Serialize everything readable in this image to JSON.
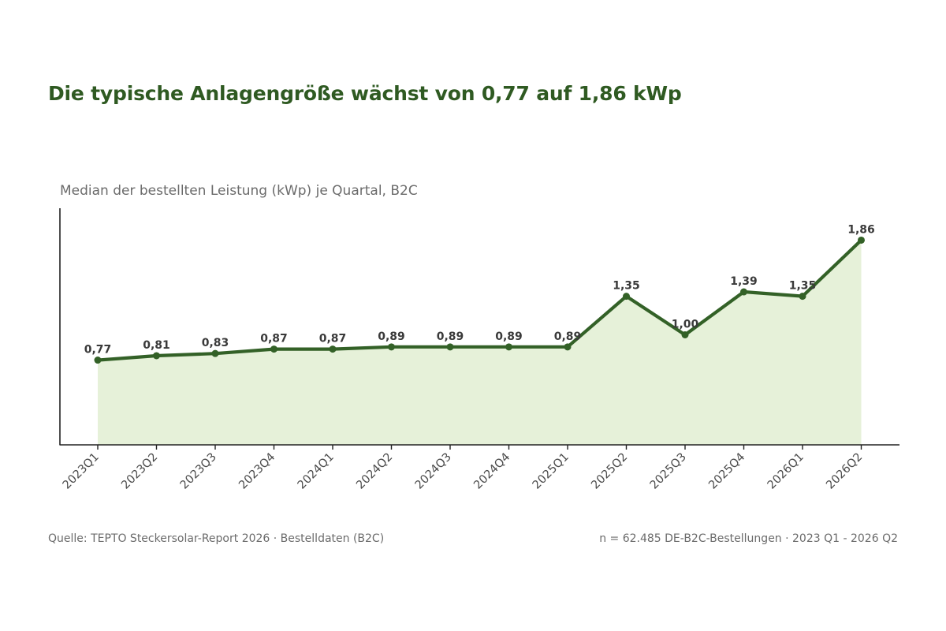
{
  "title": "Die typische Anlagengröße wächst von 0,77 auf 1,86 kWp",
  "subtitle": "Median der bestellten Leistung (kWp) je Quartal, B2C",
  "footer": {
    "source": "Quelle: TEPTO Steckersolar-Report 2026 · Bestelldaten (B2C)",
    "sample": "n = 62.485 DE-B2C-Bestellungen · 2023 Q1 - 2026 Q2"
  },
  "colors": {
    "title": "#2f5a22",
    "line": "#336127",
    "area": "#e6f1d9",
    "axis": "#222222",
    "text": "#6b6b6b"
  },
  "chart_data": {
    "type": "area",
    "title": "Die typische Anlagengröße wächst von 0,77 auf 1,86 kWp",
    "subtitle": "Median der bestellten Leistung (kWp) je Quartal, B2C",
    "xlabel": "",
    "ylabel": "",
    "categories": [
      "2023Q1",
      "2023Q2",
      "2023Q3",
      "2023Q4",
      "2024Q1",
      "2024Q2",
      "2024Q3",
      "2024Q4",
      "2025Q1",
      "2025Q2",
      "2025Q3",
      "2025Q4",
      "2026Q1",
      "2026Q2"
    ],
    "values": [
      0.77,
      0.81,
      0.83,
      0.87,
      0.87,
      0.89,
      0.89,
      0.89,
      0.89,
      1.35,
      1.0,
      1.39,
      1.35,
      1.86
    ],
    "labels": [
      "0,77",
      "0,81",
      "0,83",
      "0,87",
      "0,87",
      "0,89",
      "0,89",
      "0,89",
      "0,89",
      "1,35",
      "1,00",
      "1,39",
      "1,35",
      "1,86"
    ],
    "ylim": [
      0,
      2.15
    ],
    "grid": false,
    "legend": "none"
  }
}
